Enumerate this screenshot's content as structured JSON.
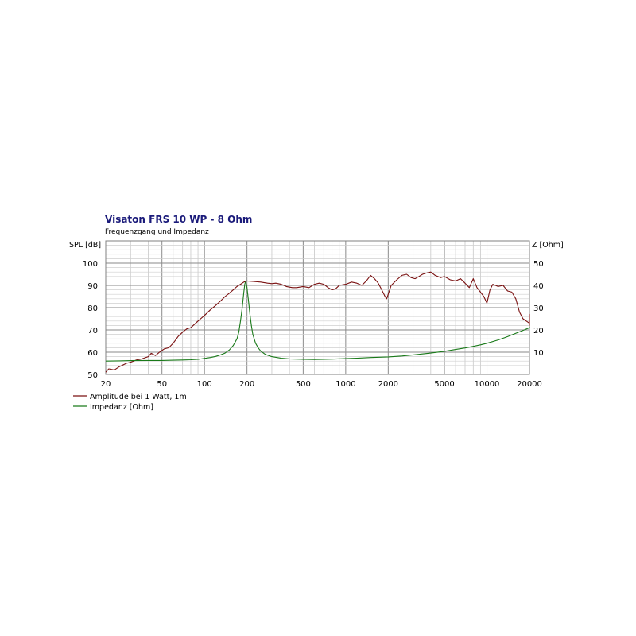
{
  "chart_data": {
    "type": "line",
    "title": "Visaton FRS 10 WP - 8 Ohm",
    "subtitle": "Frequenzgang und Impedanz",
    "title_color": "#1a1a7a",
    "x_scale": "log",
    "xlim": [
      20,
      20000
    ],
    "x_ticks": [
      20,
      50,
      100,
      200,
      500,
      1000,
      2000,
      5000,
      10000,
      20000
    ],
    "x_tick_labels": [
      "20",
      "50",
      "100",
      "200",
      "500",
      "1000",
      "2000",
      "5000",
      "10000",
      "20000"
    ],
    "ylabel": "SPL [dB]",
    "ylim": [
      50,
      110
    ],
    "y_ticks": [
      50,
      60,
      70,
      80,
      90,
      100
    ],
    "y_tick_labels": [
      "50",
      "60",
      "70",
      "80",
      "90",
      "100"
    ],
    "y2label": "Z [Ohm]",
    "y2lim": [
      0,
      60
    ],
    "y2_ticks": [
      10,
      20,
      30,
      40,
      50
    ],
    "y2_tick_labels": [
      "10",
      "20",
      "30",
      "40",
      "50"
    ],
    "grid": true,
    "legend_position": "bottom-left",
    "series": [
      {
        "name": "Amplitude bei 1 Watt, 1m",
        "axis": "left",
        "color": "#7a1010",
        "points": [
          [
            20,
            51
          ],
          [
            21,
            52.5
          ],
          [
            23,
            52
          ],
          [
            25,
            53.5
          ],
          [
            28,
            55
          ],
          [
            30,
            55.5
          ],
          [
            33,
            56.5
          ],
          [
            36,
            57
          ],
          [
            40,
            58
          ],
          [
            42,
            59.5
          ],
          [
            45,
            58.5
          ],
          [
            48,
            60
          ],
          [
            52,
            61.5
          ],
          [
            56,
            62
          ],
          [
            60,
            64
          ],
          [
            65,
            67
          ],
          [
            70,
            69
          ],
          [
            75,
            70.5
          ],
          [
            80,
            71
          ],
          [
            90,
            74
          ],
          [
            100,
            76.5
          ],
          [
            110,
            79
          ],
          [
            120,
            81
          ],
          [
            130,
            83
          ],
          [
            140,
            85
          ],
          [
            150,
            86.5
          ],
          [
            160,
            88
          ],
          [
            170,
            89.5
          ],
          [
            180,
            90.5
          ],
          [
            190,
            91.5
          ],
          [
            200,
            92
          ],
          [
            220,
            91.8
          ],
          [
            250,
            91.5
          ],
          [
            280,
            91
          ],
          [
            300,
            90.8
          ],
          [
            320,
            91
          ],
          [
            350,
            90.5
          ],
          [
            380,
            89.5
          ],
          [
            420,
            89
          ],
          [
            450,
            89
          ],
          [
            500,
            89.5
          ],
          [
            550,
            89
          ],
          [
            600,
            90.5
          ],
          [
            650,
            91
          ],
          [
            700,
            90.5
          ],
          [
            750,
            89
          ],
          [
            800,
            88
          ],
          [
            850,
            88.5
          ],
          [
            900,
            90
          ],
          [
            1000,
            90.5
          ],
          [
            1100,
            91.5
          ],
          [
            1200,
            91
          ],
          [
            1300,
            90
          ],
          [
            1400,
            92
          ],
          [
            1500,
            94.5
          ],
          [
            1600,
            93
          ],
          [
            1700,
            91
          ],
          [
            1800,
            88
          ],
          [
            1900,
            85
          ],
          [
            1950,
            84
          ],
          [
            2000,
            86
          ],
          [
            2100,
            90
          ],
          [
            2300,
            92.5
          ],
          [
            2500,
            94.5
          ],
          [
            2700,
            95
          ],
          [
            2900,
            93.5
          ],
          [
            3100,
            93
          ],
          [
            3300,
            94
          ],
          [
            3500,
            95
          ],
          [
            3700,
            95.5
          ],
          [
            4000,
            96
          ],
          [
            4300,
            94.5
          ],
          [
            4700,
            93.5
          ],
          [
            5000,
            94
          ],
          [
            5500,
            92.5
          ],
          [
            6000,
            92
          ],
          [
            6500,
            93
          ],
          [
            7000,
            91
          ],
          [
            7500,
            89
          ],
          [
            8000,
            93
          ],
          [
            8500,
            89
          ],
          [
            9000,
            87
          ],
          [
            9500,
            85
          ],
          [
            10000,
            82
          ],
          [
            10500,
            88
          ],
          [
            11000,
            90.5
          ],
          [
            12000,
            89.5
          ],
          [
            13000,
            90
          ],
          [
            14000,
            87.5
          ],
          [
            15000,
            87
          ],
          [
            16000,
            84
          ],
          [
            17000,
            78
          ],
          [
            18000,
            75
          ],
          [
            19000,
            74
          ],
          [
            20000,
            73
          ],
          [
            21000,
            77
          ],
          [
            22000,
            72
          ],
          [
            23000,
            73
          ]
        ]
      },
      {
        "name": "Impedanz [Ohm]",
        "axis": "right",
        "color": "#1a7a1a",
        "points": [
          [
            20,
            6
          ],
          [
            25,
            6.1
          ],
          [
            30,
            6.2
          ],
          [
            40,
            6.3
          ],
          [
            50,
            6.3
          ],
          [
            60,
            6.4
          ],
          [
            70,
            6.5
          ],
          [
            80,
            6.6
          ],
          [
            90,
            6.8
          ],
          [
            100,
            7.2
          ],
          [
            110,
            7.6
          ],
          [
            120,
            8.1
          ],
          [
            130,
            8.8
          ],
          [
            140,
            9.6
          ],
          [
            150,
            11
          ],
          [
            160,
            13
          ],
          [
            170,
            16
          ],
          [
            175,
            19
          ],
          [
            180,
            24
          ],
          [
            185,
            30
          ],
          [
            190,
            37
          ],
          [
            193,
            40.5
          ],
          [
            195,
            41.5
          ],
          [
            197,
            41
          ],
          [
            200,
            39
          ],
          [
            205,
            33
          ],
          [
            210,
            27
          ],
          [
            215,
            22
          ],
          [
            220,
            18
          ],
          [
            230,
            14
          ],
          [
            240,
            12
          ],
          [
            250,
            10.5
          ],
          [
            270,
            9
          ],
          [
            300,
            8
          ],
          [
            350,
            7.3
          ],
          [
            400,
            7
          ],
          [
            500,
            6.8
          ],
          [
            600,
            6.7
          ],
          [
            700,
            6.8
          ],
          [
            800,
            6.9
          ],
          [
            1000,
            7.1
          ],
          [
            1200,
            7.3
          ],
          [
            1500,
            7.6
          ],
          [
            2000,
            7.9
          ],
          [
            2500,
            8.3
          ],
          [
            3000,
            8.8
          ],
          [
            4000,
            9.6
          ],
          [
            5000,
            10.4
          ],
          [
            6000,
            11.2
          ],
          [
            7000,
            11.9
          ],
          [
            8000,
            12.6
          ],
          [
            9000,
            13.3
          ],
          [
            10000,
            14
          ],
          [
            12000,
            15.5
          ],
          [
            14000,
            17
          ],
          [
            16000,
            18.5
          ],
          [
            18000,
            19.8
          ],
          [
            20000,
            21
          ],
          [
            23000,
            21.5
          ]
        ]
      }
    ]
  }
}
